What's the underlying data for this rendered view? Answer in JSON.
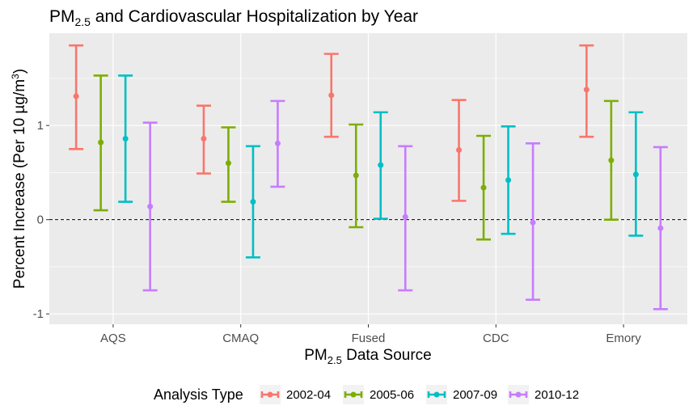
{
  "chart_data": {
    "type": "errorbar",
    "title": {
      "main": "PM",
      "sub": "2.5",
      "rest": " and Cardiovascular Hospitalization by Year"
    },
    "xlabel": {
      "main": "PM",
      "sub": "2.5",
      "rest": " Data Source"
    },
    "ylabel": {
      "pre": "Percent Increase (Per 10 µg/m",
      "sup": "3",
      "post": ")"
    },
    "categories": [
      "AQS",
      "CMAQ",
      "Fused",
      "CDC",
      "Emory"
    ],
    "yticks": [
      -1,
      0,
      1
    ],
    "ylim": [
      -1.11,
      1.98
    ],
    "reference_line": {
      "y": 0,
      "style": "dashed"
    },
    "legend": {
      "title": "Analysis Type",
      "position": "bottom"
    },
    "series": [
      {
        "name": "2002-04",
        "color": "#F8766D",
        "estimate": [
          1.31,
          0.86,
          1.32,
          0.74,
          1.38
        ],
        "lower": [
          0.75,
          0.49,
          0.88,
          0.2,
          0.88
        ],
        "upper": [
          1.85,
          1.21,
          1.76,
          1.27,
          1.85
        ]
      },
      {
        "name": "2005-06",
        "color": "#7CAE00",
        "estimate": [
          0.82,
          0.6,
          0.47,
          0.34,
          0.63
        ],
        "lower": [
          0.1,
          0.19,
          -0.08,
          -0.21,
          0.0
        ],
        "upper": [
          1.53,
          0.98,
          1.01,
          0.89,
          1.26
        ]
      },
      {
        "name": "2007-09",
        "color": "#00BFC4",
        "estimate": [
          0.86,
          0.19,
          0.58,
          0.42,
          0.48
        ],
        "lower": [
          0.19,
          -0.4,
          0.01,
          -0.15,
          -0.17
        ],
        "upper": [
          1.53,
          0.78,
          1.14,
          0.99,
          1.14
        ]
      },
      {
        "name": "2010-12",
        "color": "#C77CFF",
        "estimate": [
          0.14,
          0.81,
          0.03,
          -0.03,
          -0.09
        ],
        "lower": [
          -0.75,
          0.35,
          -0.75,
          -0.85,
          -0.95
        ],
        "upper": [
          1.03,
          1.26,
          0.78,
          0.81,
          0.77
        ]
      }
    ]
  }
}
